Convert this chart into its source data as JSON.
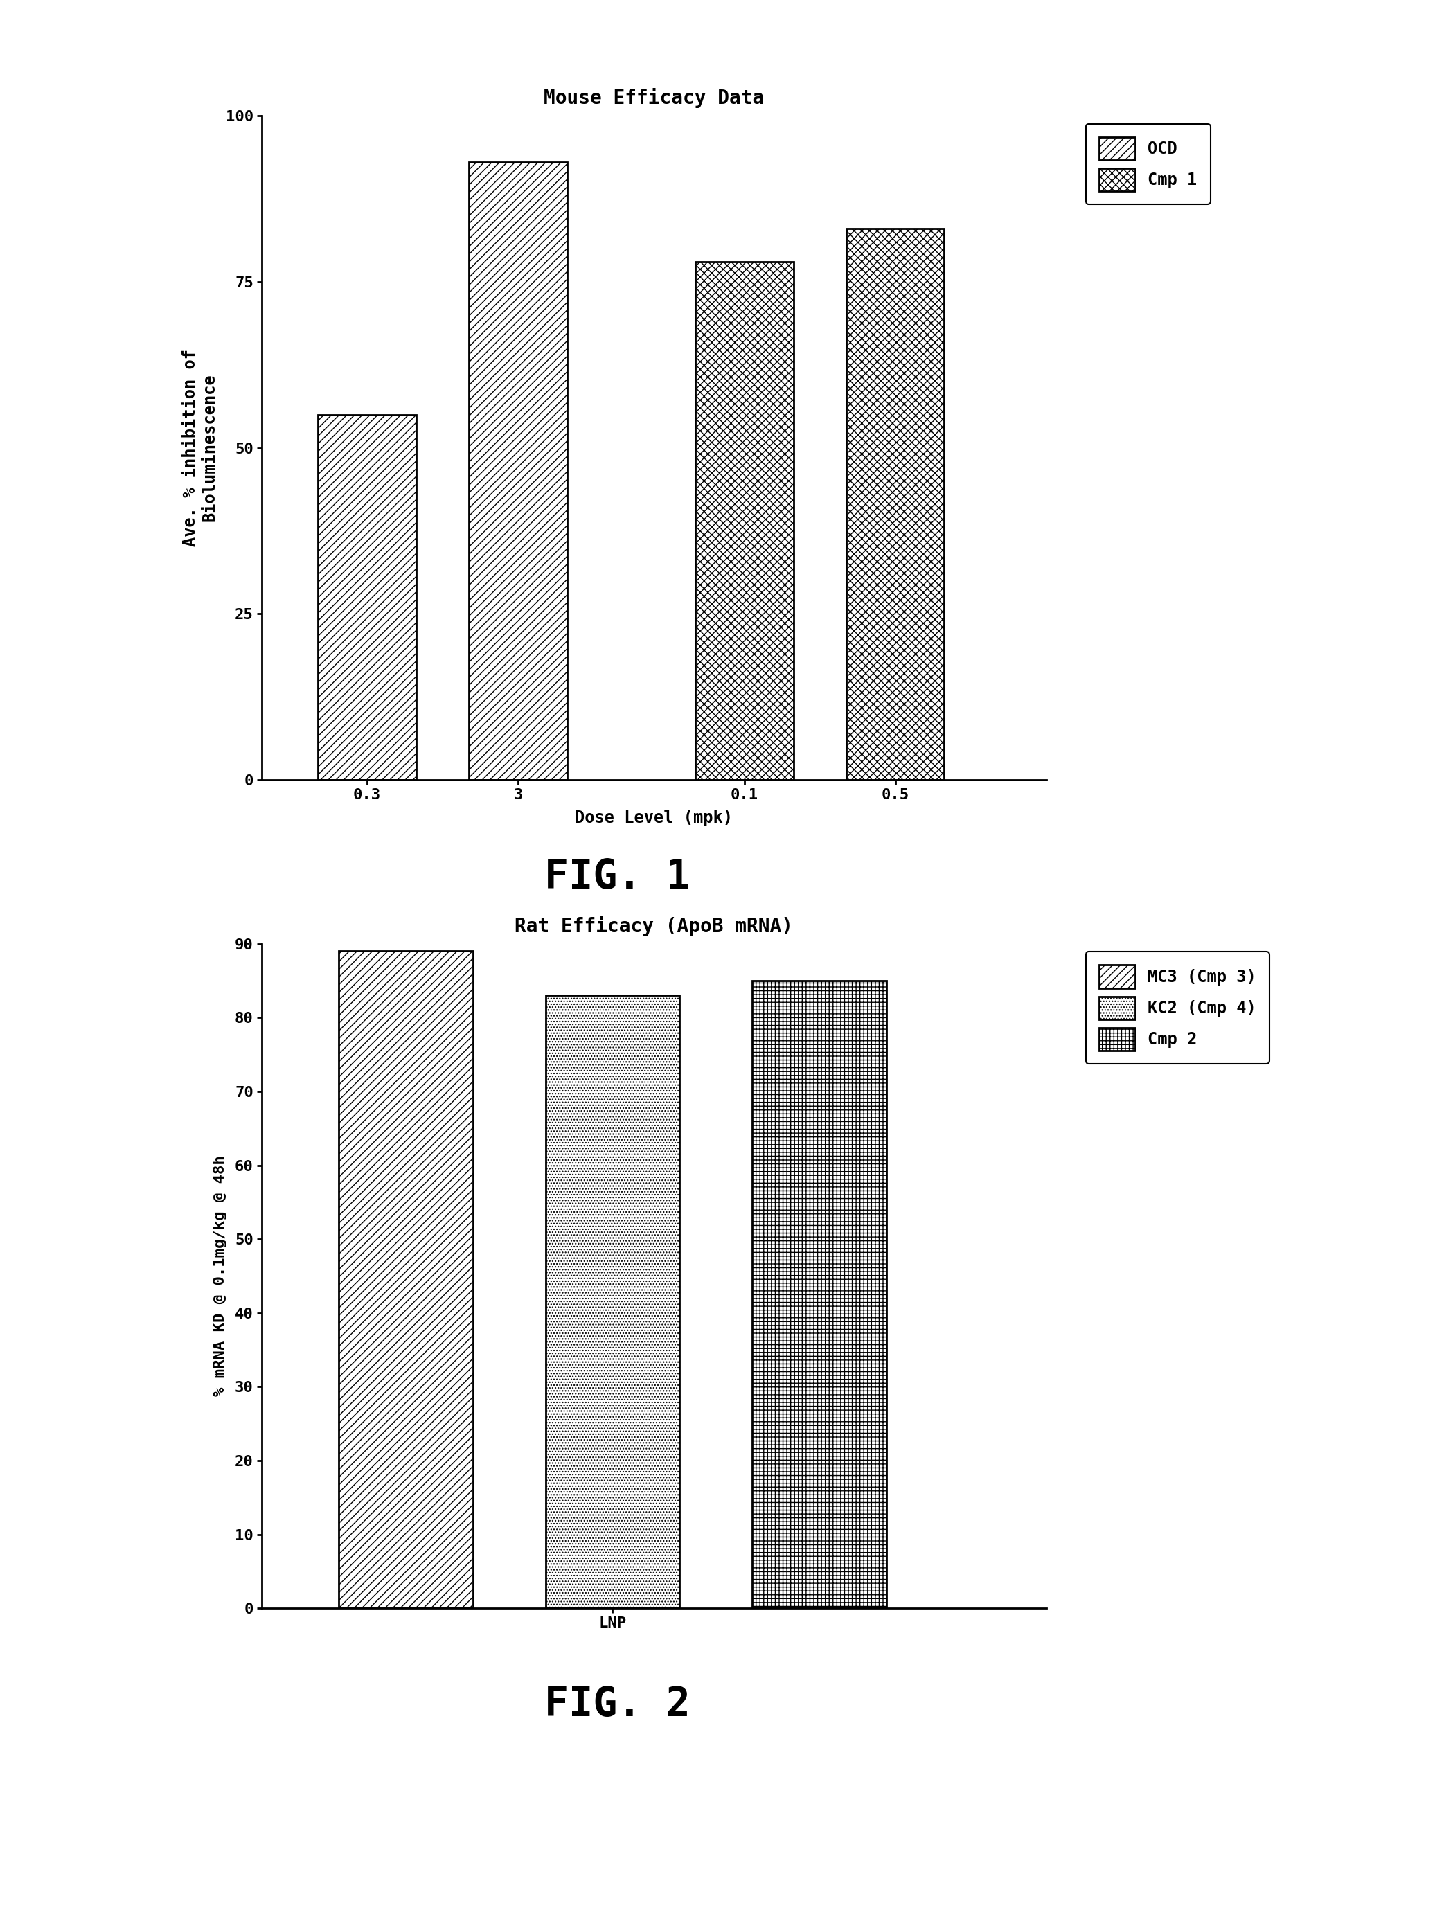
{
  "fig1": {
    "title": "Mouse Efficacy Data",
    "bars": [
      {
        "value": 55,
        "hatch": "///",
        "label": "OCD"
      },
      {
        "value": 93,
        "hatch": "///",
        "label": "OCD"
      },
      {
        "value": 78,
        "hatch": "xxx",
        "label": "Cmp 1"
      },
      {
        "value": 83,
        "hatch": "xxx",
        "label": "Cmp 1"
      }
    ],
    "xlabel": "Dose Level (mpk)",
    "ylabel": "Ave. % inhibition of\nBioluminescence",
    "ylim": [
      0,
      100
    ],
    "yticks": [
      0,
      25,
      50,
      75,
      100
    ],
    "xtick_labels": [
      "0.3",
      "3",
      "0.1",
      "0.5"
    ],
    "positions": [
      0.7,
      1.7,
      3.2,
      4.2
    ],
    "xlim": [
      0.0,
      5.2
    ],
    "legend": [
      {
        "label": "OCD",
        "hatch": "///"
      },
      {
        "label": "Cmp 1",
        "hatch": "xxx"
      }
    ],
    "fig_label": "FIG. 1"
  },
  "fig2": {
    "title": "Rat Efficacy (ApoB mRNA)",
    "bars": [
      {
        "value": 89,
        "hatch": "///",
        "label": "MC3 (Cmp 3)"
      },
      {
        "value": 83,
        "hatch": "....",
        "label": "KC2 (Cmp 4)"
      },
      {
        "value": 85,
        "hatch": "+++",
        "label": "Cmp 2"
      }
    ],
    "xlabel": "LNP",
    "ylabel": "% mRNA KD @ 0.1mg/kg @ 48h",
    "ylim": [
      0,
      90
    ],
    "yticks": [
      0,
      10,
      20,
      30,
      40,
      50,
      60,
      70,
      80,
      90
    ],
    "positions": [
      0.9,
      1.9,
      2.9
    ],
    "xlim": [
      0.2,
      4.0
    ],
    "legend": [
      {
        "label": "MC3 (Cmp 3)",
        "hatch": "///"
      },
      {
        "label": "KC2 (Cmp 4)",
        "hatch": "...."
      },
      {
        "label": "Cmp 2",
        "hatch": "+++"
      }
    ],
    "fig_label": "FIG. 2"
  },
  "background_color": "#ffffff",
  "bar_facecolor": "white",
  "bar_edgecolor": "black",
  "bar_linewidth": 2.0,
  "bar_width": 0.65,
  "title_fontsize": 20,
  "label_fontsize": 17,
  "tick_fontsize": 16,
  "legend_fontsize": 17,
  "figlabel_fontsize": 42
}
